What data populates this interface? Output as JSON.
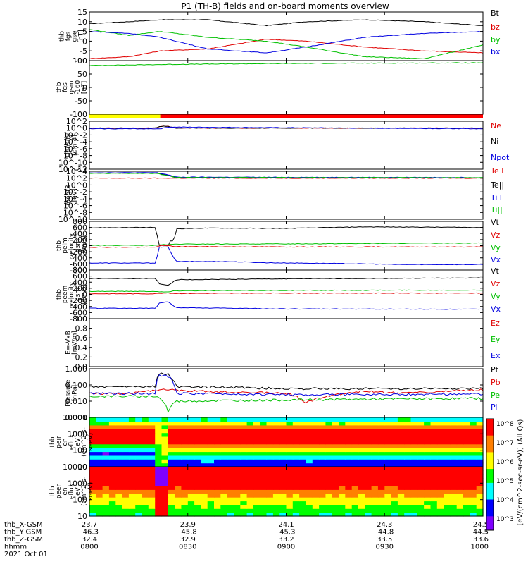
{
  "title": "P1 (TH-B) fields and on-board moments overview",
  "date_label": "2021 Oct 01",
  "footer_rows": [
    {
      "label": "thb_X-GSM",
      "values": [
        "23.7",
        "23.9",
        "24.1",
        "24.3",
        "24.5"
      ]
    },
    {
      "label": "thb_Y-GSM",
      "values": [
        "-46.3",
        "-45.8",
        "-45.3",
        "-44.8",
        "-44.5"
      ]
    },
    {
      "label": "thb_Z-GSM",
      "values": [
        "32.4",
        "32.9",
        "33.2",
        "33.5",
        "33.6"
      ]
    },
    {
      "label": "hhmm",
      "values": [
        "0800",
        "0830",
        "0900",
        "0930",
        "1000"
      ]
    }
  ],
  "colorbar": {
    "label": "[eV/(cm^2-sec-sr-eV)] (All Qs)",
    "ticks": [
      "10^8",
      "10^7",
      "10^6",
      "10^5",
      "10^4",
      "10^3"
    ],
    "colors": [
      "#ff0000",
      "#ff7f00",
      "#ffff00",
      "#00ff00",
      "#00ffff",
      "#0000ff",
      "#7f00ff",
      "#000000"
    ]
  },
  "chart_data": [
    {
      "type": "line",
      "ylabel": [
        "thb",
        "fgs",
        "gse",
        "[nT]"
      ],
      "ylim": [
        -10,
        15
      ],
      "yticks": [
        "15",
        "10",
        "5",
        "0",
        "-5",
        "-10"
      ],
      "series": [
        {
          "name": "Bt",
          "color": "#000000",
          "x": [
            0,
            0.1,
            0.18,
            0.3,
            0.45,
            0.55,
            0.7,
            0.85,
            1
          ],
          "y": [
            9,
            10,
            11,
            11,
            8,
            10,
            11,
            10,
            8
          ]
        },
        {
          "name": "bz",
          "color": "#e00000",
          "x": [
            0,
            0.1,
            0.18,
            0.3,
            0.45,
            0.55,
            0.7,
            0.85,
            1
          ],
          "y": [
            -9,
            -8,
            -5,
            -4,
            1,
            0,
            -3,
            -5,
            -6
          ]
        },
        {
          "name": "by",
          "color": "#00c000",
          "x": [
            0,
            0.1,
            0.18,
            0.3,
            0.45,
            0.55,
            0.7,
            0.85,
            1
          ],
          "y": [
            6,
            3,
            5,
            2,
            0,
            -3,
            -8,
            -9,
            -2
          ]
        },
        {
          "name": "bx",
          "color": "#0000e0",
          "x": [
            0,
            0.1,
            0.18,
            0.3,
            0.45,
            0.55,
            0.7,
            0.85,
            1
          ],
          "y": [
            5,
            4,
            2,
            -4,
            -6,
            -3,
            2,
            4,
            5
          ]
        }
      ]
    },
    {
      "type": "line",
      "ylabel": [
        "thb",
        "fgs",
        "gsm",
        "-160",
        "[nT]"
      ],
      "ylim": [
        -130,
        110
      ],
      "yticks": [
        "100",
        "50",
        "0",
        "-50",
        "-100"
      ],
      "series": [
        {
          "name": "",
          "color": "#00c000",
          "x": [
            0,
            0.2,
            0.4,
            0.6,
            0.8,
            1
          ],
          "y": [
            88,
            93,
            96,
            98,
            99,
            100
          ]
        }
      ],
      "bar_colors": [
        {
          "from": 0,
          "to": 0.18,
          "color": "#ffff00"
        },
        {
          "from": 0.18,
          "to": 1,
          "color": "#ff0000"
        }
      ]
    },
    {
      "type": "line",
      "ylabel": [
        "Density",
        "[cm-3]"
      ],
      "ylim": [
        -12,
        2
      ],
      "yticks": [
        "10^2",
        "10^0",
        "10^-2",
        "10^-4",
        "10^-6",
        "10^-8",
        "10^-10",
        "10^-12"
      ],
      "series": [
        {
          "name": "Ne",
          "color": "#e00000",
          "x": [
            0,
            0.17,
            0.18,
            0.2,
            0.22,
            1
          ],
          "y": [
            0,
            0,
            0.5,
            0.5,
            0,
            0
          ]
        },
        {
          "name": "Ni",
          "color": "#000000",
          "x": [
            0,
            0.17,
            0.18,
            0.2,
            0.22,
            1
          ],
          "y": [
            0,
            0,
            0.5,
            0.5,
            0,
            0
          ]
        },
        {
          "name": "Npot",
          "color": "#0000e0",
          "x": [
            0,
            0.18,
            0.2,
            1
          ],
          "y": [
            -0.2,
            -0.2,
            0.3,
            -0.2
          ]
        }
      ]
    },
    {
      "type": "line",
      "ylabel": [
        "moqt3",
        "[eV]"
      ],
      "ylim": [
        -10,
        4
      ],
      "yticks": [
        "10^4",
        "10^2",
        "10^0",
        "10^-2",
        "10^-4",
        "10^-6",
        "10^-8",
        "10^-10"
      ],
      "series": [
        {
          "name": "Te⊥",
          "color": "#e00000",
          "x": [
            0,
            0.17,
            0.2,
            0.22,
            1
          ],
          "y": [
            2,
            2,
            2,
            2,
            2
          ]
        },
        {
          "name": "Te||",
          "color": "#000000",
          "x": [
            0,
            0.17,
            0.2,
            0.22,
            1
          ],
          "y": [
            3.5,
            3.5,
            2.8,
            2.2,
            2.1
          ]
        },
        {
          "name": "Ti⊥",
          "color": "#0000e0",
          "x": [
            0,
            0.17,
            0.2,
            0.22,
            1
          ],
          "y": [
            3.6,
            3.6,
            3,
            2.3,
            2.2
          ]
        },
        {
          "name": "Ti||",
          "color": "#00c000",
          "x": [
            0,
            0.17,
            0.2,
            0.22,
            1
          ],
          "y": [
            3.4,
            3.4,
            2.7,
            2.2,
            2.15
          ]
        }
      ]
    },
    {
      "type": "line",
      "ylabel": [
        "thb",
        "peim",
        "velocity",
        "gsm",
        "[km/s]"
      ],
      "ylim": [
        -800,
        800
      ],
      "yticks": [
        "800",
        "600",
        "400",
        "200",
        "0",
        "-200",
        "-400",
        "-600",
        "-800"
      ],
      "series": [
        {
          "name": "Vt",
          "color": "#000000",
          "x": [
            0,
            0.17,
            0.175,
            0.2,
            0.205,
            0.215,
            0.22,
            0.3,
            0.5,
            0.7,
            1
          ],
          "y": [
            590,
            600,
            0,
            0,
            150,
            150,
            560,
            580,
            570,
            620,
            600
          ]
        },
        {
          "name": "Vz",
          "color": "#e00000",
          "x": [
            0,
            0.17,
            0.175,
            0.2,
            0.22,
            0.5,
            1
          ],
          "y": [
            -50,
            -50,
            0,
            0,
            -30,
            -40,
            -40
          ]
        },
        {
          "name": "Vy",
          "color": "#00c000",
          "x": [
            0,
            0.17,
            0.175,
            0.2,
            0.22,
            0.5,
            1
          ],
          "y": [
            10,
            10,
            30,
            30,
            50,
            60,
            90
          ]
        },
        {
          "name": "Vx",
          "color": "#0000e0",
          "x": [
            0,
            0.17,
            0.175,
            0.2,
            0.22,
            0.35,
            0.45,
            0.6,
            0.8,
            1
          ],
          "y": [
            -570,
            -570,
            -50,
            -50,
            -520,
            -520,
            -560,
            -580,
            -620,
            -620
          ]
        }
      ]
    },
    {
      "type": "line",
      "ylabel": [
        "thb",
        "peem",
        "velocity",
        "gsm",
        "[km/s]"
      ],
      "ylim": [
        -800,
        800
      ],
      "yticks": [
        "800",
        "600",
        "400",
        "200",
        "0",
        "-200",
        "-400",
        "-600",
        "-800"
      ],
      "series": [
        {
          "name": "Vt",
          "color": "#000000",
          "x": [
            0,
            0.17,
            0.175,
            0.2,
            0.22,
            0.5,
            1
          ],
          "y": [
            520,
            520,
            350,
            300,
            480,
            510,
            540
          ]
        },
        {
          "name": "Vz",
          "color": "#e00000",
          "x": [
            0,
            0.17,
            0.175,
            0.2,
            0.22,
            0.5,
            1
          ],
          "y": [
            20,
            20,
            40,
            40,
            30,
            40,
            40
          ]
        },
        {
          "name": "Vy",
          "color": "#00c000",
          "x": [
            0,
            0.17,
            0.175,
            0.2,
            0.22,
            0.5,
            1
          ],
          "y": [
            100,
            100,
            80,
            80,
            120,
            130,
            140
          ]
        },
        {
          "name": "Vx",
          "color": "#0000e0",
          "x": [
            0,
            0.17,
            0.175,
            0.2,
            0.22,
            0.5,
            1
          ],
          "y": [
            -460,
            -460,
            -300,
            -240,
            -440,
            -480,
            -490
          ]
        }
      ]
    },
    {
      "type": "line",
      "ylabel": [
        "E=-VxB",
        "[mV/m]"
      ],
      "ylim": [
        0,
        1
      ],
      "yticks": [
        "1.0",
        "0.8",
        "0.6",
        "0.4",
        "0.2",
        "0.0"
      ],
      "series": [
        {
          "name": "Ez",
          "color": "#e00000",
          "x": [],
          "y": []
        },
        {
          "name": "Ey",
          "color": "#00c000",
          "x": [],
          "y": []
        },
        {
          "name": "Ex",
          "color": "#0000e0",
          "x": [],
          "y": []
        }
      ]
    },
    {
      "type": "line",
      "scale": "log",
      "ylabel": [
        "Pressure",
        "[nPa]"
      ],
      "ylim": [
        0.001,
        1
      ],
      "yticks": [
        "1.000",
        "0.100",
        "0.010",
        "0.001"
      ],
      "series": [
        {
          "name": "Pt",
          "color": "#000000",
          "x": [
            0,
            0.17,
            0.175,
            0.2,
            0.22,
            0.5,
            1
          ],
          "y": [
            0.075,
            0.08,
            0.5,
            0.45,
            0.08,
            0.06,
            0.06
          ]
        },
        {
          "name": "Pb",
          "color": "#e00000",
          "x": [
            0,
            0.1,
            0.17,
            0.2,
            0.3,
            0.5,
            0.55,
            0.7,
            0.8,
            1
          ],
          "y": [
            0.03,
            0.03,
            0.05,
            0.05,
            0.04,
            0.03,
            0.008,
            0.04,
            0.03,
            0.05
          ]
        },
        {
          "name": "Pe",
          "color": "#00c000",
          "x": [
            0,
            0.17,
            0.2,
            0.22,
            0.5,
            1
          ],
          "y": [
            0.02,
            0.02,
            0.002,
            0.01,
            0.012,
            0.015
          ]
        },
        {
          "name": "Pi",
          "color": "#0000e0",
          "x": [
            0,
            0.17,
            0.175,
            0.2,
            0.22,
            0.5,
            1
          ],
          "y": [
            0.03,
            0.03,
            0.4,
            0.35,
            0.03,
            0.025,
            0.028
          ]
        }
      ]
    },
    {
      "type": "heatmap",
      "ylabel": [
        "thb",
        "peir",
        "en",
        "eflux",
        "eV",
        "(cm^2-s-",
        "sr-eV)"
      ],
      "yticks": [
        "10000",
        "1000",
        "100",
        "10"
      ],
      "ylim": [
        5,
        20000
      ],
      "band_levels": [
        0.2,
        0.25,
        0.35,
        0.5,
        0.65,
        0.8,
        0.9,
        0.95,
        1.0,
        0.9,
        0.8,
        0.6,
        0.4
      ]
    },
    {
      "type": "heatmap",
      "ylabel": [
        "thb",
        "peer",
        "en",
        "eflux",
        "eV",
        "(cm^2-s-",
        "sr-eV)"
      ],
      "yticks": [
        "10000",
        "1000",
        "100",
        "10"
      ],
      "ylim": [
        5,
        20000
      ],
      "band_levels": [
        0.45,
        0.5,
        0.55,
        0.6,
        0.65,
        0.72,
        0.8,
        0.88,
        0.95,
        1.0,
        1.0,
        0.95,
        0.9
      ]
    }
  ]
}
